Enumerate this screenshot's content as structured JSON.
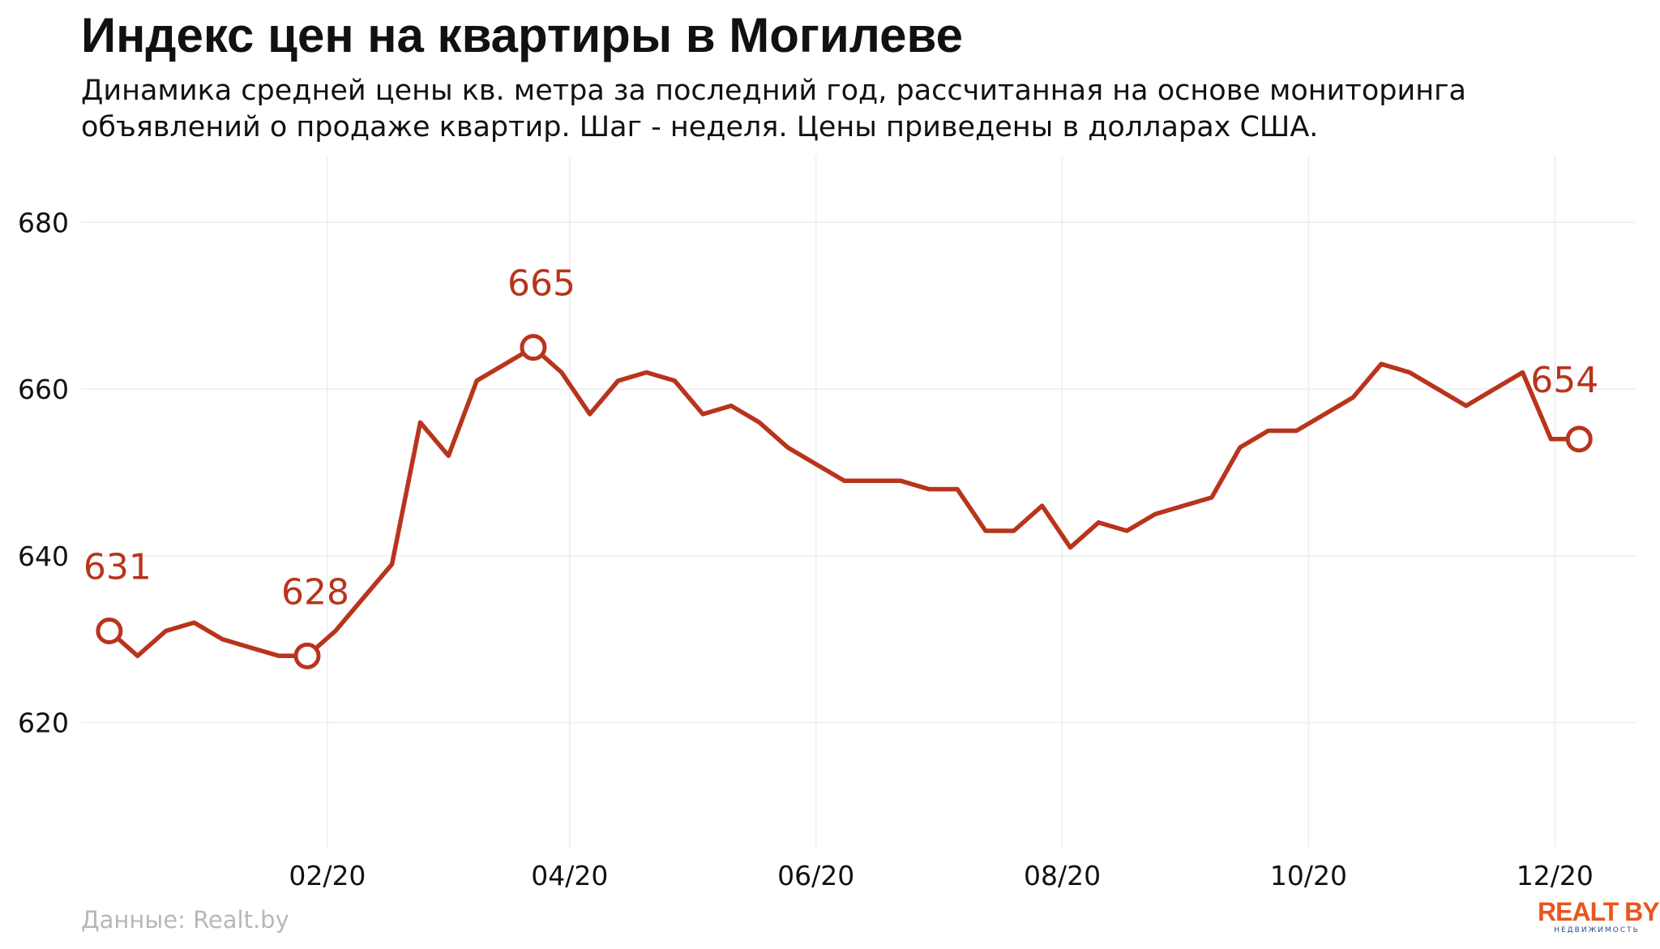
{
  "colors": {
    "line": "#b8341c",
    "grid": "#eeeeee",
    "text": "#111111",
    "source_text": "#b8b8b8",
    "logo_orange": "#e8561f",
    "logo_blue": "#2a4a8a"
  },
  "footer": {
    "source": "Данные: Realt.by"
  },
  "logo": {
    "main": "REALT BY",
    "sub": "НЕДВИЖИМОСТЬ"
  },
  "chart_data": {
    "type": "line",
    "title": "Индекс цен на квартиры в Могилеве",
    "subtitle_lines": [
      "Динамика средней цены кв. метра за последний год, рассчитанная на основе мониторинга",
      "объявлений о продаже квартир. Шаг - неделя. Цены приведены в долларах США."
    ],
    "xlabel": "",
    "ylabel": "",
    "x_ticks": [
      {
        "date": "2020-02-01",
        "label": "02/20"
      },
      {
        "date": "2020-04-01",
        "label": "04/20"
      },
      {
        "date": "2020-06-01",
        "label": "06/20"
      },
      {
        "date": "2020-08-01",
        "label": "08/20"
      },
      {
        "date": "2020-10-01",
        "label": "10/20"
      },
      {
        "date": "2020-12-01",
        "label": "12/20"
      }
    ],
    "y_ticks": [
      620,
      640,
      660,
      680
    ],
    "xlim": [
      "2019-12-02",
      "2020-12-21"
    ],
    "ylim": [
      605,
      688
    ],
    "grid": true,
    "legend": "none",
    "series": [
      {
        "x": [
          "2019-12-09",
          "2019-12-16",
          "2019-12-23",
          "2019-12-30",
          "2020-01-06",
          "2020-01-13",
          "2020-01-20",
          "2020-01-27",
          "2020-02-03",
          "2020-02-10",
          "2020-02-17",
          "2020-02-24",
          "2020-03-02",
          "2020-03-09",
          "2020-03-16",
          "2020-03-23",
          "2020-03-30",
          "2020-04-06",
          "2020-04-13",
          "2020-04-20",
          "2020-04-27",
          "2020-05-04",
          "2020-05-11",
          "2020-05-18",
          "2020-05-25",
          "2020-06-01",
          "2020-06-08",
          "2020-06-15",
          "2020-06-22",
          "2020-06-29",
          "2020-07-06",
          "2020-07-13",
          "2020-07-20",
          "2020-07-27",
          "2020-08-03",
          "2020-08-10",
          "2020-08-17",
          "2020-08-24",
          "2020-08-31",
          "2020-09-07",
          "2020-09-14",
          "2020-09-21",
          "2020-09-28",
          "2020-10-05",
          "2020-10-12",
          "2020-10-19",
          "2020-10-26",
          "2020-11-02",
          "2020-11-09",
          "2020-11-16",
          "2020-11-23",
          "2020-11-30",
          "2020-12-07"
        ],
        "values": [
          631,
          628,
          631,
          632,
          630,
          629,
          628,
          628,
          631,
          635,
          639,
          656,
          652,
          661,
          663,
          665,
          662,
          657,
          661,
          662,
          661,
          657,
          658,
          656,
          653,
          651,
          649,
          649,
          649,
          648,
          648,
          643,
          643,
          646,
          641,
          644,
          643,
          645,
          646,
          647,
          653,
          655,
          655,
          657,
          659,
          663,
          662,
          660,
          658,
          660,
          662,
          654,
          654
        ]
      }
    ],
    "annotations": [
      {
        "x": "2019-12-09",
        "y": 631,
        "label": "631"
      },
      {
        "x": "2020-01-27",
        "y": 628,
        "label": "628"
      },
      {
        "x": "2020-03-23",
        "y": 665,
        "label": "665"
      },
      {
        "x": "2020-12-07",
        "y": 654,
        "label": "654"
      }
    ]
  }
}
